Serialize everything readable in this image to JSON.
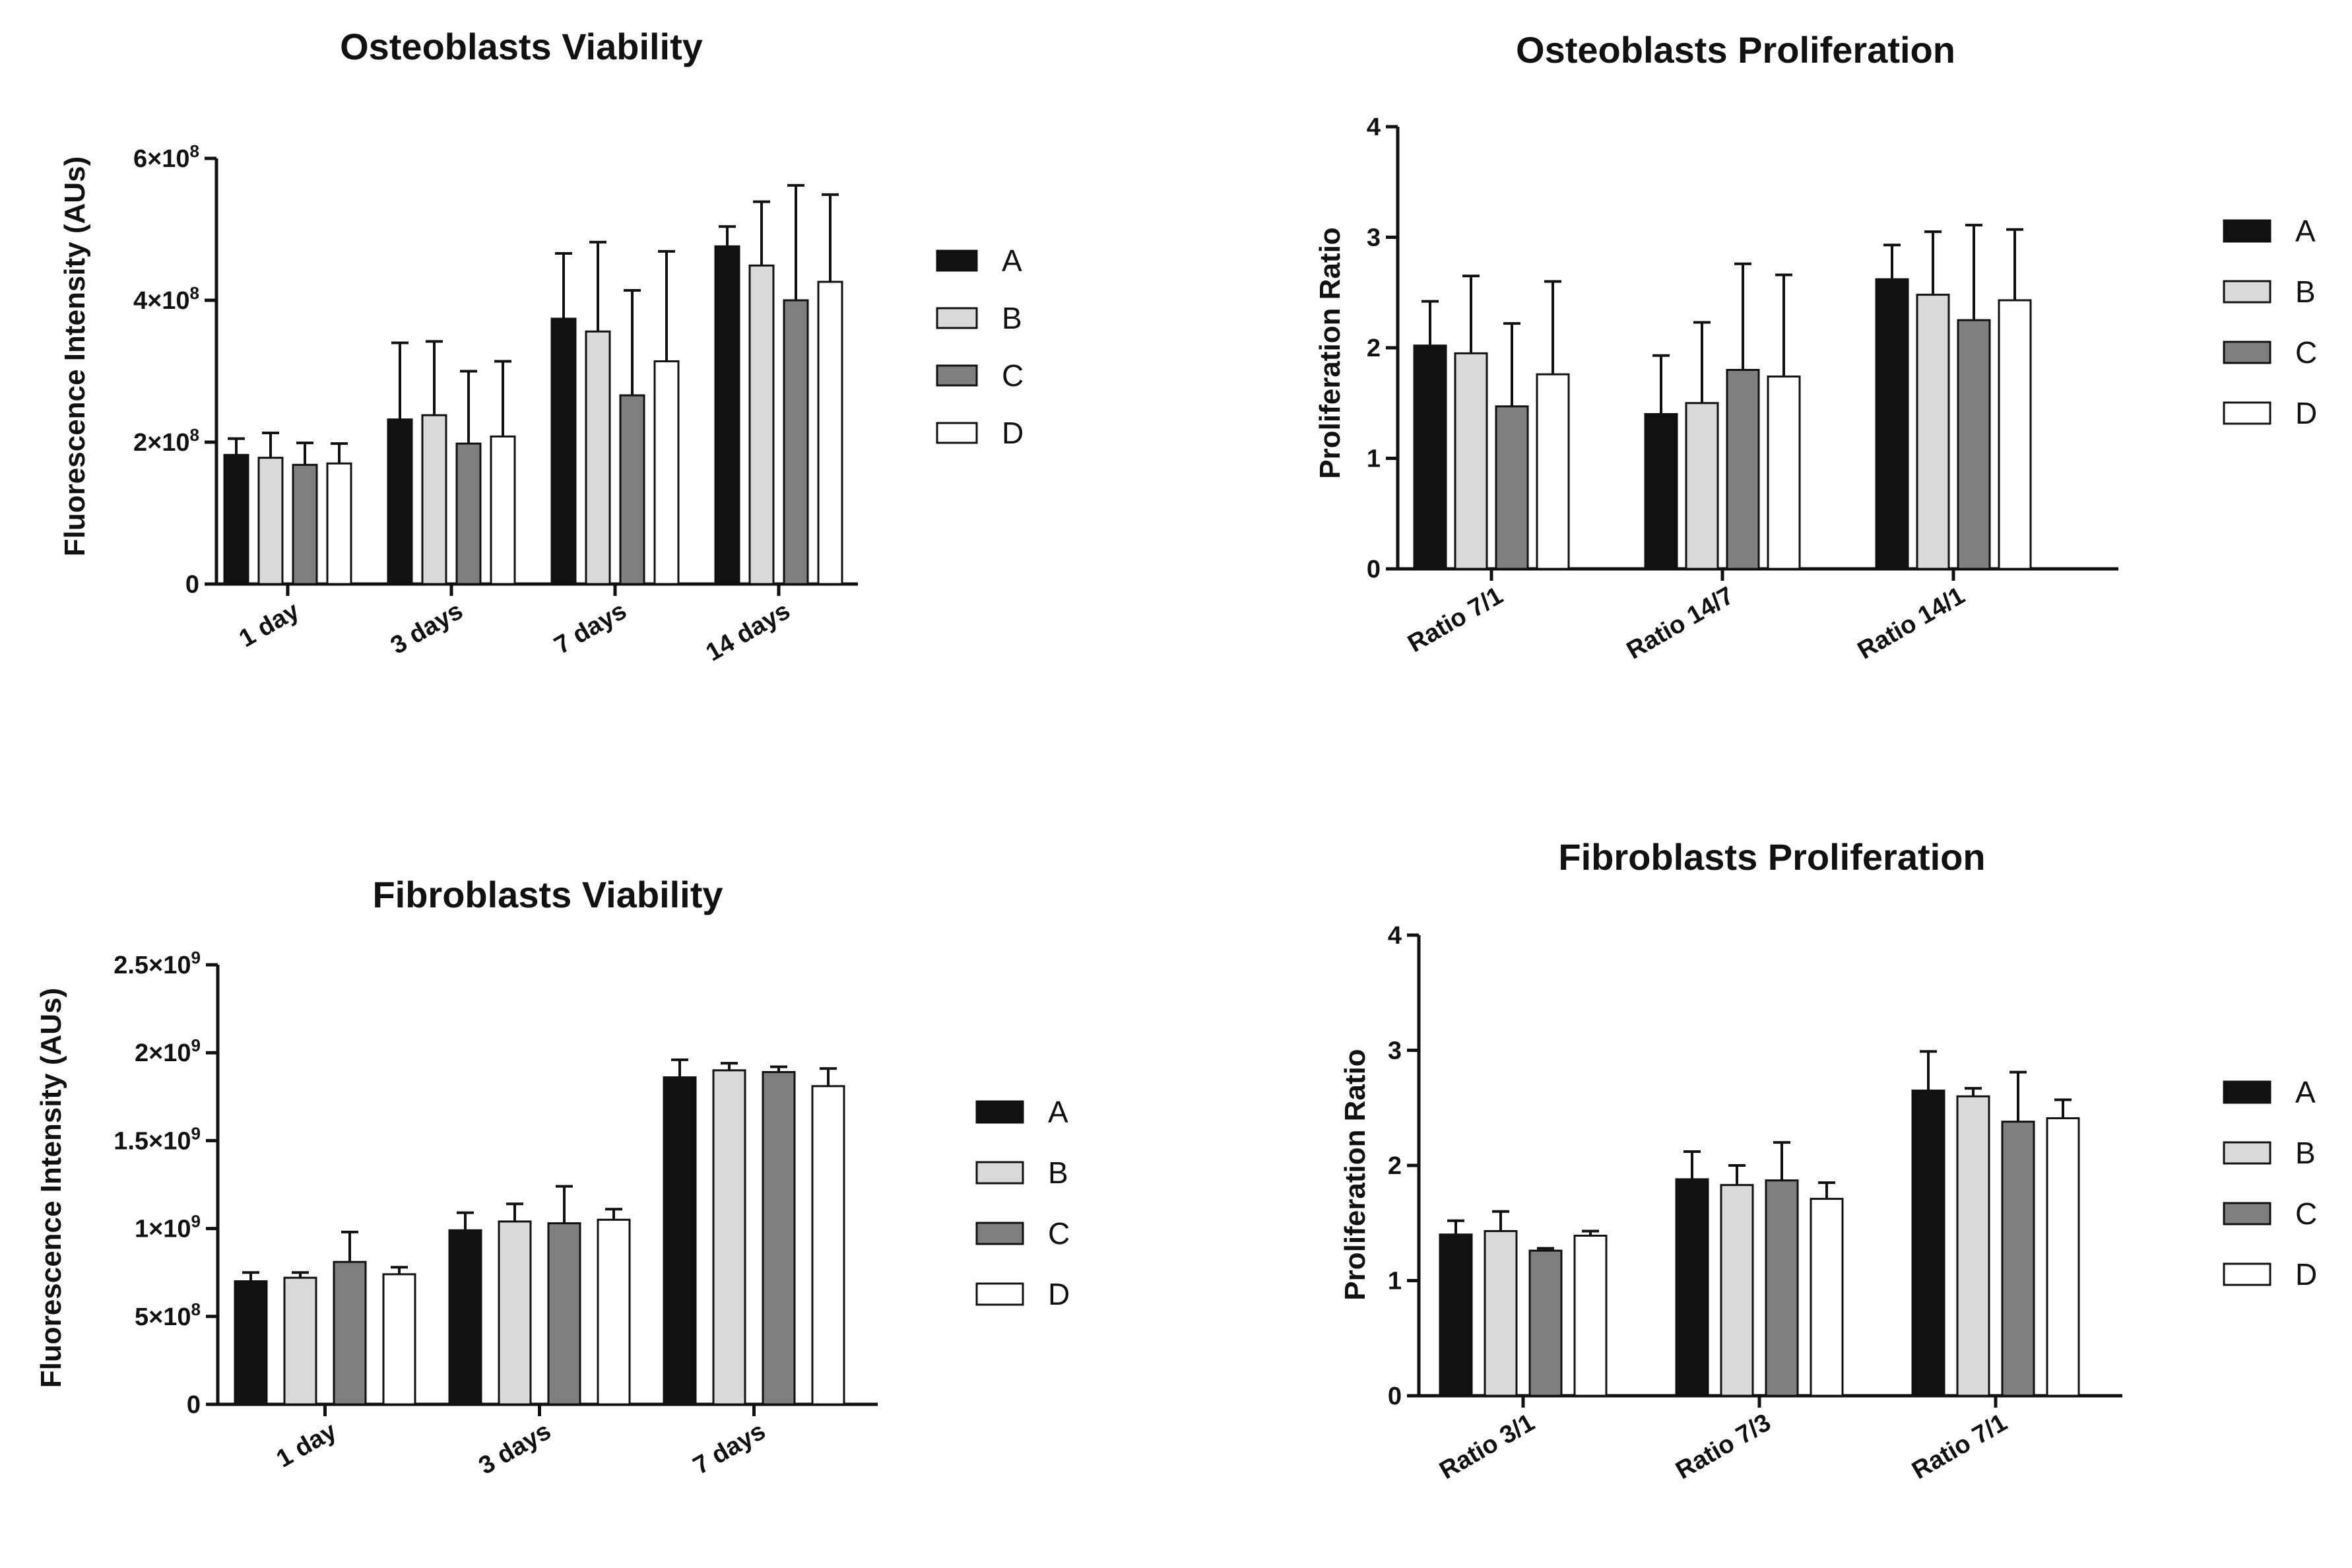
{
  "colors": {
    "A": "#111111",
    "B": "#d9d9d9",
    "C": "#7f7f7f",
    "D": "#ffffff"
  },
  "chart_data": [
    {
      "type": "bar",
      "title": "Osteoblasts Viability",
      "ylabel": "Fluorescence Intensity (AUs)",
      "xlabel": "",
      "categories": [
        "1 day",
        "3 days",
        "7 days",
        "14 days"
      ],
      "ylim": [
        0,
        600000000
      ],
      "ticks": [
        0,
        200000000,
        400000000,
        600000000
      ],
      "tick_labels": [
        {
          "base": "0",
          "exp": ""
        },
        {
          "base": "2×10",
          "exp": "8"
        },
        {
          "base": "4×10",
          "exp": "8"
        },
        {
          "base": "6×10",
          "exp": "8"
        }
      ],
      "legend": [
        "A",
        "B",
        "C",
        "D"
      ],
      "legend_position": "right",
      "series": [
        {
          "name": "A",
          "values": [
            182000000,
            232000000,
            374000000,
            476000000
          ],
          "errors": [
            23000000,
            108000000,
            92000000,
            28000000
          ]
        },
        {
          "name": "B",
          "values": [
            178000000,
            238000000,
            356000000,
            449000000
          ],
          "errors": [
            35000000,
            104000000,
            126000000,
            90000000
          ]
        },
        {
          "name": "C",
          "values": [
            168000000,
            198000000,
            266000000,
            400000000
          ],
          "errors": [
            31000000,
            102000000,
            148000000,
            162000000
          ]
        },
        {
          "name": "D",
          "values": [
            170000000,
            208000000,
            314000000,
            426000000
          ],
          "errors": [
            28000000,
            106000000,
            155000000,
            123000000
          ]
        }
      ]
    },
    {
      "type": "bar",
      "title": "Osteoblasts Proliferation",
      "ylabel": "Proliferation Ratio",
      "xlabel": "",
      "categories": [
        "Ratio 7/1",
        "Ratio 14/7",
        "Ratio 14/1"
      ],
      "ylim": [
        0,
        4
      ],
      "ticks": [
        0,
        1,
        2,
        3,
        4
      ],
      "tick_labels": [
        {
          "base": "0",
          "exp": ""
        },
        {
          "base": "1",
          "exp": ""
        },
        {
          "base": "2",
          "exp": ""
        },
        {
          "base": "3",
          "exp": ""
        },
        {
          "base": "4",
          "exp": ""
        }
      ],
      "legend": [
        "A",
        "B",
        "C",
        "D"
      ],
      "legend_position": "right",
      "series": [
        {
          "name": "A",
          "values": [
            2.02,
            1.4,
            2.62
          ],
          "errors": [
            0.4,
            0.53,
            0.31
          ]
        },
        {
          "name": "B",
          "values": [
            1.95,
            1.5,
            2.48
          ],
          "errors": [
            0.7,
            0.73,
            0.57
          ]
        },
        {
          "name": "C",
          "values": [
            1.47,
            1.8,
            2.25
          ],
          "errors": [
            0.75,
            0.96,
            0.86
          ]
        },
        {
          "name": "D",
          "values": [
            1.76,
            1.74,
            2.43
          ],
          "errors": [
            0.84,
            0.92,
            0.64
          ]
        }
      ]
    },
    {
      "type": "bar",
      "title": "Fibroblasts Viability",
      "ylabel": "Fluorescence Intensity (AUs)",
      "xlabel": "",
      "categories": [
        "1 day",
        "3 days",
        "7 days"
      ],
      "ylim": [
        0,
        2500000000
      ],
      "ticks": [
        0,
        500000000,
        1000000000,
        1500000000,
        2000000000,
        2500000000
      ],
      "tick_labels": [
        {
          "base": "0",
          "exp": ""
        },
        {
          "base": "5×10",
          "exp": "8"
        },
        {
          "base": "1×10",
          "exp": "9"
        },
        {
          "base": "1.5×10",
          "exp": "9"
        },
        {
          "base": "2×10",
          "exp": "9"
        },
        {
          "base": "2.5×10",
          "exp": "9"
        }
      ],
      "legend": [
        "A",
        "B",
        "C",
        "D"
      ],
      "legend_position": "right",
      "series": [
        {
          "name": "A",
          "values": [
            700000000,
            990000000,
            1860000000
          ],
          "errors": [
            50000000,
            100000000,
            100000000
          ]
        },
        {
          "name": "B",
          "values": [
            720000000,
            1040000000,
            1900000000
          ],
          "errors": [
            30000000,
            100000000,
            40000000
          ]
        },
        {
          "name": "C",
          "values": [
            810000000,
            1030000000,
            1890000000
          ],
          "errors": [
            170000000,
            210000000,
            30000000
          ]
        },
        {
          "name": "D",
          "values": [
            740000000,
            1050000000,
            1810000000
          ],
          "errors": [
            40000000,
            60000000,
            100000000
          ]
        }
      ]
    },
    {
      "type": "bar",
      "title": "Fibroblasts Proliferation",
      "ylabel": "Proliferation Ratio",
      "xlabel": "",
      "categories": [
        "Ratio 3/1",
        "Ratio 7/3",
        "Ratio 7/1"
      ],
      "ylim": [
        0,
        4
      ],
      "ticks": [
        0,
        1,
        2,
        3,
        4
      ],
      "tick_labels": [
        {
          "base": "0",
          "exp": ""
        },
        {
          "base": "1",
          "exp": ""
        },
        {
          "base": "2",
          "exp": ""
        },
        {
          "base": "3",
          "exp": ""
        },
        {
          "base": "4",
          "exp": ""
        }
      ],
      "legend": [
        "A",
        "B",
        "C",
        "D"
      ],
      "legend_position": "right",
      "series": [
        {
          "name": "A",
          "values": [
            1.4,
            1.88,
            2.65
          ],
          "errors": [
            0.12,
            0.24,
            0.34
          ]
        },
        {
          "name": "B",
          "values": [
            1.43,
            1.83,
            2.6
          ],
          "errors": [
            0.17,
            0.17,
            0.07
          ]
        },
        {
          "name": "C",
          "values": [
            1.26,
            1.87,
            2.38
          ],
          "errors": [
            0.02,
            0.33,
            0.43
          ]
        },
        {
          "name": "D",
          "values": [
            1.39,
            1.71,
            2.41
          ],
          "errors": [
            0.04,
            0.14,
            0.16
          ]
        }
      ]
    }
  ]
}
